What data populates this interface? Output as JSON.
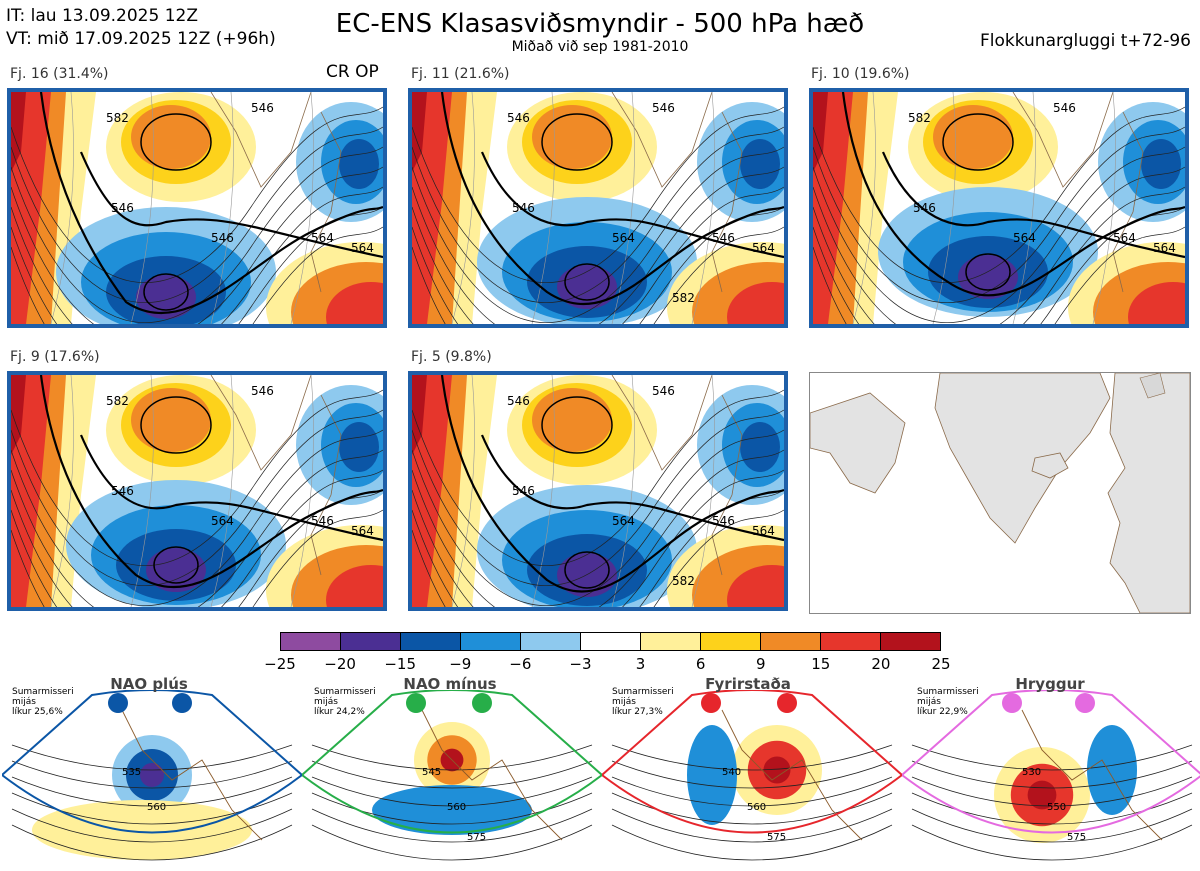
{
  "header": {
    "issue_time": "IT: lau 13.09.2025 12Z",
    "valid_time": "VT: mið 17.09.2025 12Z  (+96h)",
    "title": "EC-ENS Klasasviðsmyndir - 500 hPa hæð",
    "subtitle": "Miðað við sep 1981-2010",
    "window": "Flokkunargluggi t+72-96"
  },
  "panels": [
    {
      "label": "Fj. 16 (31.4%)",
      "tag": "CR OP",
      "contours": [
        "546",
        "546",
        "564",
        "564",
        "546",
        "582"
      ],
      "regime": "trough-south"
    },
    {
      "label": "Fj. 11 (21.6%)",
      "contours": [
        "546",
        "546",
        "546",
        "564",
        "564",
        "546",
        "582"
      ],
      "regime": "trough-south"
    },
    {
      "label": "Fj. 10 (19.6%)",
      "contours": [
        "546",
        "546",
        "564",
        "564",
        "564",
        "582"
      ],
      "regime": "low-center"
    },
    {
      "label": "Fj. 9 (17.6%)",
      "contours": [
        "546",
        "546",
        "546",
        "564",
        "564",
        "582"
      ],
      "regime": "low-sw"
    },
    {
      "label": "Fj. 5 (9.8%)",
      "contours": [
        "546",
        "546",
        "546",
        "564",
        "564",
        "546",
        "582"
      ],
      "regime": "low-deep"
    }
  ],
  "colorbar": {
    "ticks": [
      "−25",
      "−20",
      "−15",
      "−9",
      "−6",
      "−3",
      "3",
      "6",
      "9",
      "15",
      "20",
      "25"
    ],
    "colors": [
      "#8e4ba0",
      "#4b2f93",
      "#0b56a6",
      "#1f8fd8",
      "#8ec9ee",
      "#ffffff",
      "#fff09a",
      "#fdd21b",
      "#f08a26",
      "#e6362c",
      "#b3121c"
    ]
  },
  "regimes": [
    {
      "name": "NAO plús",
      "note1": "Sumarmisseri",
      "note2": "mijás",
      "note3": "líkur 25,6%",
      "color": "#0b56a6",
      "contours": [
        "535",
        "560"
      ]
    },
    {
      "name": "NAO mínus",
      "note1": "Sumarmisseri",
      "note2": "mijás",
      "note3": "líkur 24,2%",
      "color": "#27ae49",
      "contours": [
        "545",
        "560",
        "575"
      ]
    },
    {
      "name": "Fyrirstaða",
      "note1": "Sumarmisseri",
      "note2": "mijás",
      "note3": "líkur 27,3%",
      "color": "#e6262c",
      "contours": [
        "540",
        "560",
        "575"
      ]
    },
    {
      "name": "Hryggur",
      "note1": "Sumarmisseri",
      "note2": "mijás",
      "note3": "líkur 22,9%",
      "color": "#e46ae0",
      "contours": [
        "530",
        "550",
        "575"
      ]
    }
  ]
}
